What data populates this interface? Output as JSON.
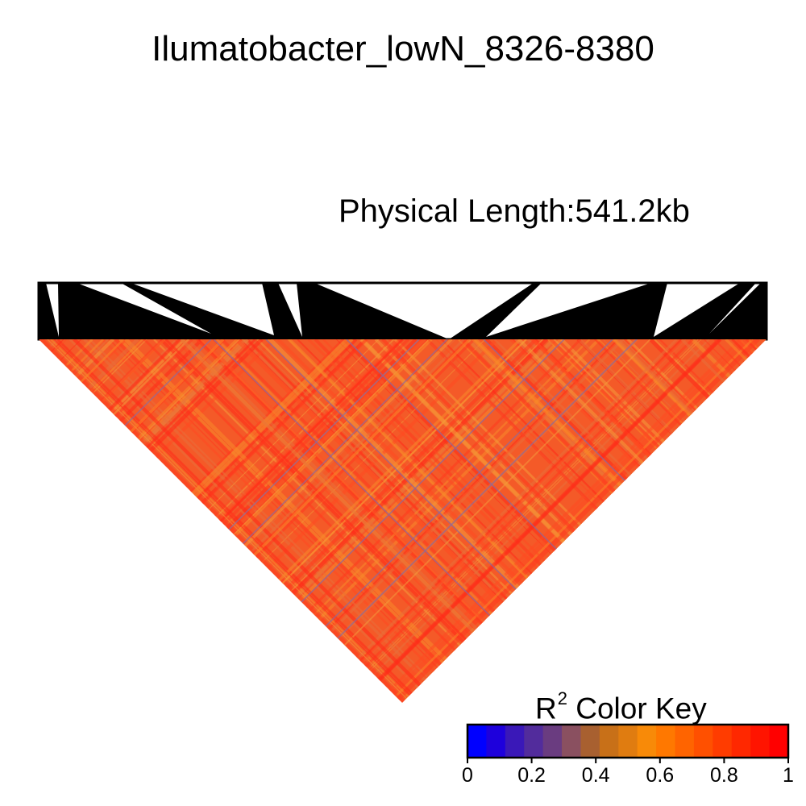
{
  "chart_data": {
    "type": "heatmap",
    "title": "Ilumatobacter_lowN_8326-8380",
    "subtitle": "Physical Length:541.2kb",
    "description_matrix": "triangular LD heatmap of pairwise R^2, predominantly high values (0.7-1.0) with thin low-value stripes",
    "color_key": {
      "label_main": "R",
      "label_sup": "2",
      "label_rest": " Color Key",
      "ticks": [
        "0",
        "0.2",
        "0.4",
        "0.6",
        "0.8",
        "1"
      ],
      "tick_values": [
        0,
        0.2,
        0.4,
        0.6,
        0.8,
        1
      ],
      "range": [
        0,
        1
      ],
      "colors": [
        "#0000ff",
        "#1e00dc",
        "#3a18b8",
        "#522c9c",
        "#6a3c80",
        "#8a5060",
        "#a86030",
        "#c87018",
        "#e07c10",
        "#f88a08",
        "#ff7800",
        "#ff6400",
        "#ff5000",
        "#ff3c00",
        "#ff2800",
        "#ff1400",
        "#ff0000"
      ]
    }
  }
}
